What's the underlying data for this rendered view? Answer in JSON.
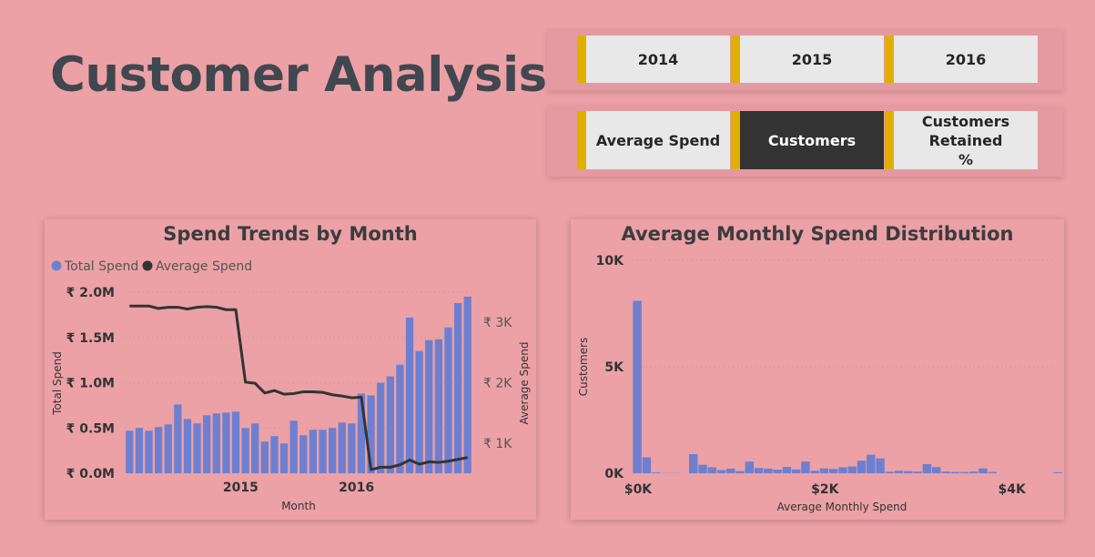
{
  "page": {
    "title": "Customer Analysis"
  },
  "year_slicer": {
    "items": [
      "2014",
      "2015",
      "2016"
    ]
  },
  "metric_slicer": {
    "items": [
      "Average Spend",
      "Customers",
      "Customers Retained %"
    ],
    "selected": "Customers"
  },
  "colors": {
    "accent": "#e0b000",
    "bar": "#6f7fcf",
    "line": "#333333",
    "background": "#eba1a6"
  },
  "chart_data": [
    {
      "type": "bar+line",
      "title": "Spend Trends by Month",
      "xlabel": "Month",
      "ylabel": "Total Spend",
      "y2label": "Average Spend",
      "legend": [
        "Total Spend",
        "Average Spend"
      ],
      "legend_position": "top-left",
      "x_ticks": [
        "2015",
        "2016"
      ],
      "y_ticks": [
        "₹ 0.0M",
        "₹ 0.5M",
        "₹ 1.0M",
        "₹ 1.5M",
        "₹ 2.0M"
      ],
      "y2_ticks": [
        "₹ 1K",
        "₹ 2K",
        "₹ 3K"
      ],
      "ylim": [
        0,
        2.0
      ],
      "y2lim": [
        500,
        3500
      ],
      "series": [
        {
          "name": "Total Spend",
          "type": "bar",
          "unit": "₹ M",
          "values": [
            0.47,
            0.5,
            0.47,
            0.51,
            0.54,
            0.76,
            0.6,
            0.55,
            0.64,
            0.66,
            0.67,
            0.68,
            0.5,
            0.55,
            0.35,
            0.41,
            0.33,
            0.58,
            0.42,
            0.48,
            0.48,
            0.5,
            0.56,
            0.55,
            0.88,
            0.86,
            1.0,
            1.07,
            1.2,
            1.72,
            1.35,
            1.47,
            1.48,
            1.61,
            1.88,
            1.95
          ]
        },
        {
          "name": "Average Spend",
          "type": "line",
          "unit": "₹",
          "values": [
            3270,
            3270,
            3270,
            3230,
            3250,
            3250,
            3220,
            3250,
            3260,
            3250,
            3210,
            3210,
            2010,
            1990,
            1830,
            1870,
            1810,
            1820,
            1850,
            1850,
            1840,
            1800,
            1780,
            1750,
            1760,
            560,
            600,
            600,
            640,
            720,
            650,
            690,
            680,
            700,
            730,
            760
          ]
        }
      ]
    },
    {
      "type": "histogram",
      "title": "Average Monthly Spend Distribution",
      "xlabel": "Average Monthly Spend",
      "ylabel": "Customers",
      "x_ticks": [
        "$0K",
        "$2K",
        "$4K"
      ],
      "y_ticks": [
        "0K",
        "5K",
        "10K"
      ],
      "xlim": [
        0,
        4500
      ],
      "ylim": [
        0,
        10000
      ],
      "bin_width": 100,
      "values": [
        8100,
        750,
        40,
        10,
        10,
        0,
        900,
        400,
        280,
        150,
        220,
        100,
        550,
        250,
        220,
        170,
        300,
        180,
        550,
        120,
        230,
        200,
        280,
        320,
        590,
        870,
        700,
        70,
        120,
        100,
        80,
        430,
        290,
        80,
        60,
        60,
        80,
        230,
        60,
        0,
        0,
        0,
        0,
        0,
        0,
        50,
        0,
        0,
        0,
        0,
        0
      ]
    }
  ]
}
